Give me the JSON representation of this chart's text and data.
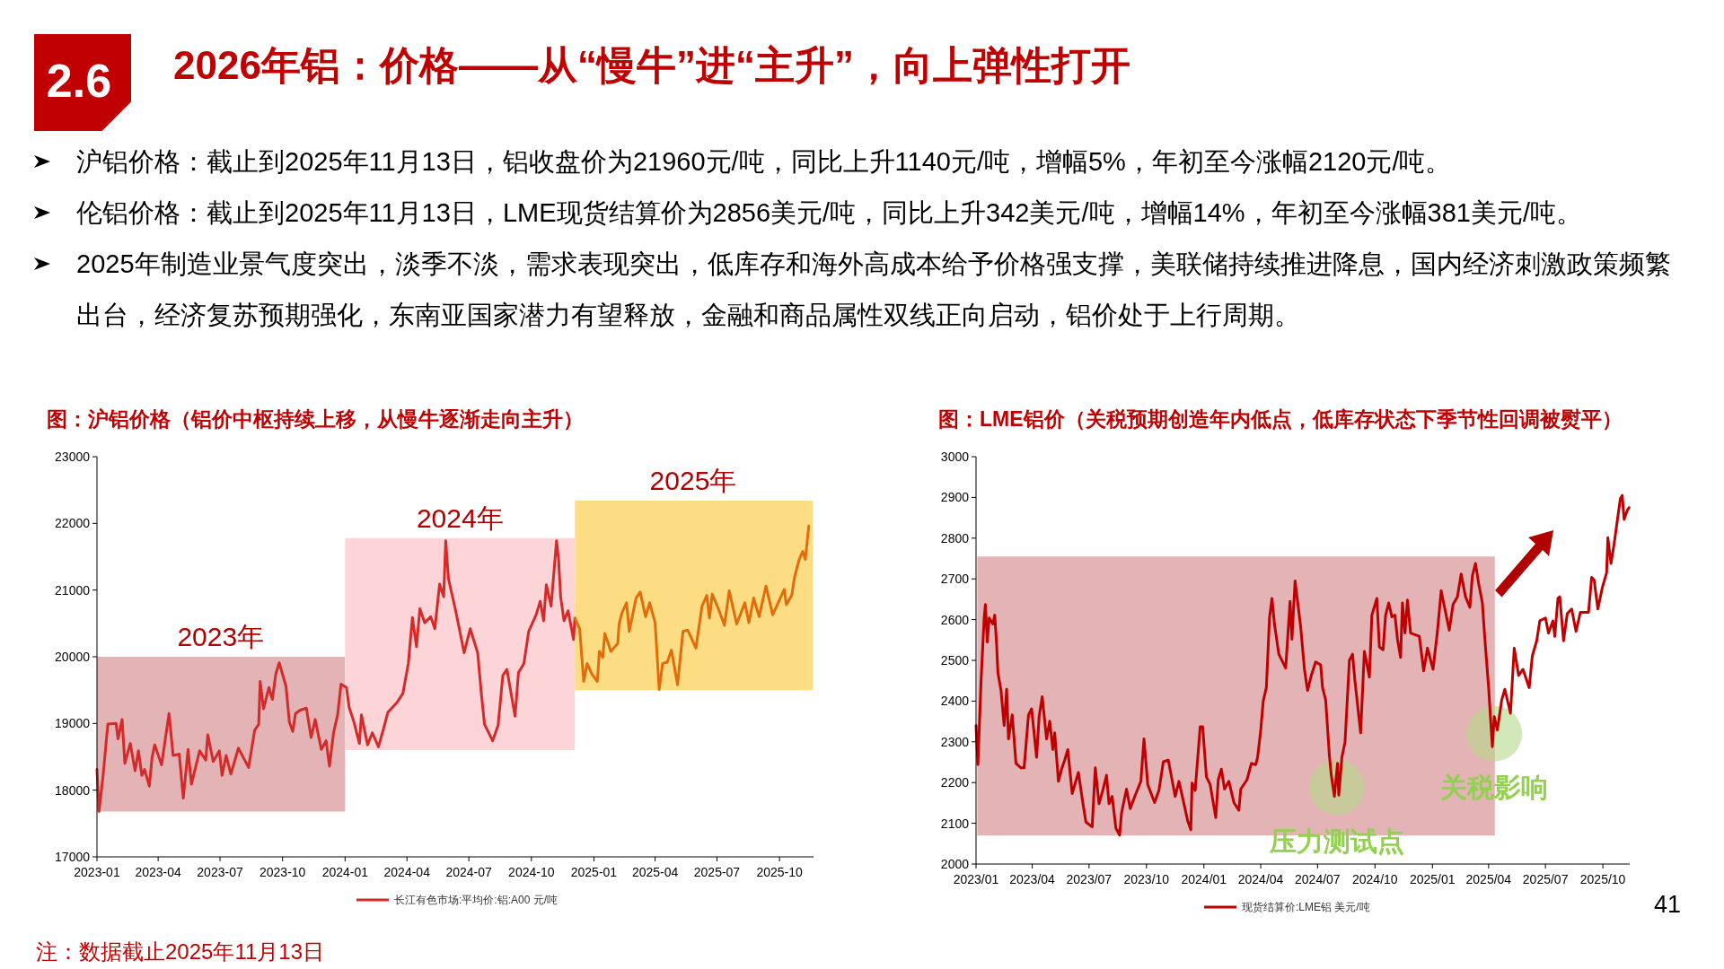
{
  "chart_data": [
    {
      "type": "other",
      "title": "2026年铝：价格——从“慢牛”进“主升”，向上弹性打开",
      "annotations": [
        "2.6",
        "沪铝价格：截止到2025年11月13日，铝收盘价为21960元/吨，同比上升1140元/吨，增幅5%，年初至今涨幅2120元/吨。",
        "伦铝价格：截止到2025年11月13日，LME现货结算价为2856美元/吨，同比上升342美元/吨，增幅14%，年初至今涨幅381美元/吨。",
        "2025年制造业景气度突出，淡季不淡，需求表现突出，低库存和海外高成本给予价格强支撑，美联储持续推进降息，国内经济刺激政策频繁出台，经济复苏预期强化，东南亚国家潜力有望释放，金融和商品属性双线正向启动，铝价处于上行周期。",
        "注：数据截止2025年11月13日",
        "41"
      ]
    },
    {
      "type": "line",
      "title": "图：沪铝价格（铝价中枢持续上移，从慢牛逐渐走向主升）",
      "xlim": [
        "2023-01-01",
        "2025-11-20"
      ],
      "xticks": [
        "2023-01",
        "2023-04",
        "2023-07",
        "2023-10",
        "2024-01",
        "2024-04",
        "2024-07",
        "2024-10",
        "2025-01",
        "2025-04",
        "2025-07",
        "2025-10"
      ],
      "ylim": [
        17000,
        23000
      ],
      "yticks": [
        17000,
        18000,
        19000,
        20000,
        21000,
        22000,
        23000
      ],
      "legend": "bottom",
      "annotations": [
        {
          "text": "2023年",
          "x": "2023-07-02",
          "y": 20000
        },
        {
          "text": "2024年",
          "x": "2024-06-18",
          "y": 21780
        },
        {
          "text": "2025年",
          "x": "2025-05-27",
          "y": 22340
        }
      ],
      "series": [
        {
          "type": "area",
          "color": "#e3b3b5",
          "x": [
            "2023-01-01",
            "2024-01-01"
          ],
          "values": [
            null,
            null
          ],
          "upper": [
            20000,
            20000
          ],
          "lower": [
            17680,
            17680
          ]
        },
        {
          "type": "area",
          "color": "#fdd5d8",
          "x": [
            "2024-01-01",
            "2024-12-04"
          ],
          "values": [
            null,
            null
          ],
          "upper": [
            21780,
            21780
          ],
          "lower": [
            18600,
            18600
          ]
        },
        {
          "type": "area",
          "color": "#fddd84",
          "x": [
            "2024-12-04",
            "2025-11-19"
          ],
          "values": [
            null,
            null
          ],
          "upper": [
            22340,
            22340
          ],
          "lower": [
            19500,
            19500
          ]
        },
        {
          "name": "长江有色市场:平均价:铝:A00 元/吨",
          "color": "#d42a2a",
          "x": [
            "2023-01-01",
            "2023-01-04",
            "2023-01-10",
            "2023-01-17",
            "2023-01-29",
            "2023-02-01",
            "2023-02-07",
            "2023-02-11",
            "2023-02-19",
            "2023-02-26",
            "2023-03-03",
            "2023-03-08",
            "2023-03-12",
            "2023-03-19",
            "2023-03-23",
            "2023-03-27",
            "2023-04-06",
            "2023-04-17",
            "2023-04-23",
            "2023-05-02",
            "2023-05-08",
            "2023-05-15",
            "2023-05-20",
            "2023-06-01",
            "2023-06-10",
            "2023-06-13",
            "2023-06-21",
            "2023-06-30",
            "2023-07-04",
            "2023-07-10",
            "2023-07-17",
            "2023-07-28",
            "2023-08-12",
            "2023-08-21",
            "2023-08-27",
            "2023-08-29",
            "2023-09-03",
            "2023-09-11",
            "2023-09-16",
            "2023-09-21",
            "2023-09-26",
            "2023-10-06",
            "2023-10-11",
            "2023-10-16",
            "2023-10-20",
            "2023-10-27",
            "2023-11-05",
            "2023-11-12",
            "2023-11-18",
            "2023-11-27",
            "2023-12-04",
            "2023-12-09",
            "2023-12-15",
            "2023-12-21",
            "2023-12-26",
            "2024-01-03",
            "2024-01-07",
            "2024-01-14",
            "2024-01-22",
            "2024-01-25",
            "2024-02-03",
            "2024-02-10",
            "2024-02-19",
            "2024-02-26",
            "2024-03-04",
            "2024-03-17",
            "2024-03-26",
            "2024-04-03",
            "2024-04-09",
            "2024-04-15",
            "2024-04-20",
            "2024-04-27",
            "2024-05-06",
            "2024-05-12",
            "2024-05-19",
            "2024-05-25",
            "2024-05-28",
            "2024-06-01",
            "2024-06-11",
            "2024-06-17",
            "2024-06-24",
            "2024-07-03",
            "2024-07-14",
            "2024-07-19",
            "2024-07-24",
            "2024-08-05",
            "2024-08-13",
            "2024-08-20",
            "2024-08-26",
            "2024-09-07",
            "2024-09-12",
            "2024-09-20",
            "2024-09-27",
            "2024-10-08",
            "2024-10-14",
            "2024-10-19",
            "2024-10-23",
            "2024-10-30",
            "2024-11-07",
            "2024-11-10",
            "2024-11-13",
            "2024-11-18",
            "2024-11-24",
            "2024-12-02",
            "2024-12-04"
          ],
          "values": [
            18310,
            17680,
            18220,
            18990,
            19000,
            18770,
            19060,
            18400,
            18700,
            18290,
            18590,
            18220,
            18310,
            18060,
            18490,
            18680,
            18380,
            19150,
            18520,
            18540,
            17880,
            18610,
            18090,
            18590,
            18450,
            18830,
            18430,
            18590,
            18220,
            18520,
            18240,
            18630,
            18340,
            18900,
            18990,
            19630,
            19220,
            19540,
            19360,
            19740,
            19910,
            19560,
            19020,
            18880,
            19150,
            19200,
            19230,
            18790,
            19060,
            18610,
            18740,
            18360,
            18860,
            19130,
            19590,
            19540,
            19240,
            19020,
            18700,
            19130,
            18680,
            18860,
            18650,
            18900,
            19170,
            19310,
            19450,
            19900,
            20590,
            20150,
            20720,
            20510,
            20600,
            20420,
            21090,
            20900,
            21740,
            21170,
            20720,
            20420,
            20060,
            20420,
            20060,
            19490,
            18990,
            18740,
            18970,
            19720,
            19810,
            19110,
            19760,
            19900,
            20380,
            20630,
            20830,
            20540,
            21080,
            20760,
            21740,
            21460,
            20900,
            20540,
            20690,
            20260,
            20580
          ]
        },
        {
          "color": "#e36c0a",
          "x": [
            "2024-12-04",
            "2024-12-11",
            "2024-12-17",
            "2024-12-22",
            "2024-12-29",
            "2025-01-06",
            "2025-01-09",
            "2025-01-14",
            "2025-01-17",
            "2025-01-26",
            "2025-02-05",
            "2025-02-07",
            "2025-02-11",
            "2025-02-18",
            "2025-02-22",
            "2025-03-04",
            "2025-03-10",
            "2025-03-18",
            "2025-03-24",
            "2025-04-01",
            "2025-04-07",
            "2025-04-12",
            "2025-04-19",
            "2025-04-25",
            "2025-05-04",
            "2025-05-12",
            "2025-05-19",
            "2025-05-31",
            "2025-06-09",
            "2025-06-16",
            "2025-06-20",
            "2025-06-24",
            "2025-07-03",
            "2025-07-12",
            "2025-07-19",
            "2025-07-30",
            "2025-08-11",
            "2025-08-17",
            "2025-08-24",
            "2025-09-01",
            "2025-09-11",
            "2025-09-21",
            "2025-09-29",
            "2025-10-08",
            "2025-10-11",
            "2025-10-19",
            "2025-10-23",
            "2025-10-30",
            "2025-11-04",
            "2025-11-08",
            "2025-11-13"
          ],
          "values": [
            20580,
            20420,
            19630,
            19900,
            19740,
            19630,
            20080,
            19990,
            20350,
            20080,
            20200,
            20490,
            20650,
            20810,
            20380,
            20880,
            20970,
            20600,
            20810,
            20510,
            19510,
            19900,
            19920,
            20100,
            19580,
            20380,
            20400,
            20130,
            20760,
            20920,
            20580,
            20940,
            20720,
            20470,
            20990,
            20490,
            20810,
            20510,
            20880,
            20600,
            21060,
            20630,
            20810,
            21010,
            20780,
            20920,
            21190,
            21460,
            21580,
            21460,
            21960
          ]
        }
      ]
    },
    {
      "type": "line",
      "title": "图：LME铝价（关税预期创造年内低点，低库存状态下季节性回调被熨平）",
      "xlim": [
        "2023-01-01",
        "2025-11-13"
      ],
      "xticks": [
        {
          "value": "2023-01",
          "label": "2023/01"
        },
        {
          "value": "2023-04",
          "label": "2023/04"
        },
        {
          "value": "2023-07",
          "label": "2023/07"
        },
        {
          "value": "2023-10",
          "label": "2023/10"
        },
        {
          "value": "2024-01",
          "label": "2024/01"
        },
        {
          "value": "2024-04",
          "label": "2024/04"
        },
        {
          "value": "2024-07",
          "label": "2024/07"
        },
        {
          "value": "2024-10",
          "label": "2024/10"
        },
        {
          "value": "2025-01",
          "label": "2025/01"
        },
        {
          "value": "2025-04",
          "label": "2025/04"
        },
        {
          "value": "2025-07",
          "label": "2025/07"
        },
        {
          "value": "2025-10",
          "label": "2025/10"
        }
      ],
      "ylim": [
        2000,
        3000
      ],
      "yticks": [
        2000,
        2100,
        2200,
        2300,
        2400,
        2500,
        2600,
        2700,
        2800,
        2900,
        3000
      ],
      "legend": "bottom",
      "annotations": [
        {
          "text": "压力测试点",
          "x": "2024-08-01",
          "y": 2188
        },
        {
          "text": "关税影响",
          "x": "2025-04-10",
          "y": 2320
        }
      ],
      "series": [
        {
          "type": "area",
          "color": "#e3b3b5",
          "x": [
            "2023-01-03",
            "2025-04-11"
          ],
          "values": [
            null,
            null
          ],
          "upper": [
            2755,
            2755
          ],
          "lower": [
            2070,
            2070
          ]
        },
        {
          "name": "现货结算价:LME铝 美元/吨",
          "color": "#c00000",
          "x": [
            "2023-01-01",
            "2023-01-04",
            "2023-01-09",
            "2023-01-14",
            "2023-01-16",
            "2023-01-19",
            "2023-01-22",
            "2023-01-28",
            "2023-01-31",
            "2023-02-03",
            "2023-02-05",
            "2023-02-10",
            "2023-02-15",
            "2023-02-19",
            "2023-02-22",
            "2023-02-28",
            "2023-03-06",
            "2023-03-14",
            "2023-03-19",
            "2023-03-26",
            "2023-03-31",
            "2023-04-08",
            "2023-04-12",
            "2023-04-17",
            "2023-04-24",
            "2023-04-29",
            "2023-05-04",
            "2023-05-07",
            "2023-05-13",
            "2023-05-18",
            "2023-05-23",
            "2023-05-28",
            "2023-06-04",
            "2023-06-14",
            "2023-06-21",
            "2023-06-26",
            "2023-07-06",
            "2023-07-11",
            "2023-07-17",
            "2023-07-23",
            "2023-07-29",
            "2023-08-02",
            "2023-08-07",
            "2023-08-13",
            "2023-08-19",
            "2023-08-22",
            "2023-08-30",
            "2023-09-05",
            "2023-09-13",
            "2023-09-22",
            "2023-09-27",
            "2023-10-03",
            "2023-10-14",
            "2023-10-21",
            "2023-10-28",
            "2023-11-05",
            "2023-11-10",
            "2023-11-16",
            "2023-11-22",
            "2023-11-29",
            "2023-12-06",
            "2023-12-11",
            "2023-12-13",
            "2023-12-18",
            "2023-12-26",
            "2023-12-30",
            "2024-01-05",
            "2024-01-11",
            "2024-01-20",
            "2024-01-24",
            "2024-01-29",
            "2024-02-03",
            "2024-02-10",
            "2024-02-18",
            "2024-02-26",
            "2024-02-29",
            "2024-03-10",
            "2024-03-17",
            "2024-03-24",
            "2024-03-27",
            "2024-04-01",
            "2024-04-05",
            "2024-04-10",
            "2024-04-15",
            "2024-04-19",
            "2024-04-23",
            "2024-04-30",
            "2024-05-11",
            "2024-05-18",
            "2024-05-21",
            "2024-05-26",
            "2024-06-04",
            "2024-06-10",
            "2024-06-15",
            "2024-06-21",
            "2024-06-28",
            "2024-07-06",
            "2024-07-09",
            "2024-07-14",
            "2024-07-20",
            "2024-07-23",
            "2024-07-28",
            "2024-08-02",
            "2024-08-04",
            "2024-08-09",
            "2024-08-14",
            "2024-08-21",
            "2024-08-26",
            "2024-08-30",
            "2024-09-08",
            "2024-09-14",
            "2024-09-17",
            "2024-09-22",
            "2024-09-26",
            "2024-10-04",
            "2024-10-08",
            "2024-10-14",
            "2024-10-18",
            "2024-10-23",
            "2024-10-28",
            "2024-11-02",
            "2024-11-06",
            "2024-11-11",
            "2024-11-14",
            "2024-11-18",
            "2024-11-22",
            "2024-11-27",
            "2024-12-04",
            "2024-12-11",
            "2024-12-18",
            "2024-12-24",
            "2025-01-02",
            "2025-01-09",
            "2025-01-15",
            "2025-01-23",
            "2025-01-28",
            "2025-02-03",
            "2025-02-10",
            "2025-02-16",
            "2025-02-23",
            "2025-03-02",
            "2025-03-06",
            "2025-03-11",
            "2025-03-16",
            "2025-03-22",
            "2025-03-26",
            "2025-04-01",
            "2025-04-04",
            "2025-04-07",
            "2025-04-10",
            "2025-04-15",
            "2025-04-22",
            "2025-04-27",
            "2025-05-06",
            "2025-05-12",
            "2025-05-19",
            "2025-05-26",
            "2025-06-05",
            "2025-06-10",
            "2025-06-17",
            "2025-06-22",
            "2025-07-01",
            "2025-07-06",
            "2025-07-13",
            "2025-07-16",
            "2025-07-21",
            "2025-07-24",
            "2025-07-30",
            "2025-08-05",
            "2025-08-12",
            "2025-08-19",
            "2025-08-26",
            "2025-09-08",
            "2025-09-13",
            "2025-09-17",
            "2025-09-23",
            "2025-09-30",
            "2025-10-07",
            "2025-10-09",
            "2025-10-14",
            "2025-10-19",
            "2025-10-24",
            "2025-10-29",
            "2025-11-01",
            "2025-11-04",
            "2025-11-09",
            "2025-11-12"
          ],
          "values": [
            2340,
            2244,
            2448,
            2604,
            2637,
            2545,
            2604,
            2589,
            2611,
            2537,
            2470,
            2426,
            2340,
            2429,
            2307,
            2366,
            2247,
            2236,
            2236,
            2366,
            2381,
            2262,
            2362,
            2411,
            2307,
            2351,
            2281,
            2322,
            2203,
            2233,
            2255,
            2281,
            2173,
            2225,
            2151,
            2103,
            2091,
            2236,
            2148,
            2181,
            2218,
            2148,
            2166,
            2088,
            2071,
            2125,
            2184,
            2136,
            2169,
            2203,
            2307,
            2195,
            2151,
            2181,
            2251,
            2255,
            2214,
            2166,
            2203,
            2155,
            2106,
            2084,
            2199,
            2181,
            2337,
            2337,
            2214,
            2195,
            2114,
            2207,
            2233,
            2184,
            2203,
            2151,
            2132,
            2184,
            2207,
            2247,
            2244,
            2262,
            2329,
            2400,
            2433,
            2604,
            2652,
            2589,
            2515,
            2481,
            2645,
            2552,
            2695,
            2582,
            2478,
            2426,
            2463,
            2496,
            2489,
            2433,
            2403,
            2266,
            2218,
            2166,
            2247,
            2169,
            2262,
            2299,
            2500,
            2515,
            2448,
            2322,
            2522,
            2500,
            2459,
            2611,
            2652,
            2533,
            2526,
            2611,
            2641,
            2607,
            2611,
            2552,
            2507,
            2641,
            2567,
            2648,
            2567,
            2563,
            2559,
            2474,
            2530,
            2478,
            2571,
            2671,
            2611,
            2574,
            2637,
            2656,
            2712,
            2656,
            2630,
            2708,
            2738,
            2689,
            2641,
            2552,
            2433,
            2359,
            2288,
            2362,
            2329,
            2403,
            2429,
            2370,
            2530,
            2463,
            2478,
            2433,
            2511,
            2548,
            2597,
            2604,
            2567,
            2597,
            2559,
            2652,
            2656,
            2548,
            2615,
            2626,
            2571,
            2618,
            2618,
            2704,
            2697,
            2626,
            2678,
            2715,
            2801,
            2738,
            2786,
            2842,
            2897,
            2905,
            2846,
            2868,
            2875
          ]
        }
      ]
    }
  ]
}
